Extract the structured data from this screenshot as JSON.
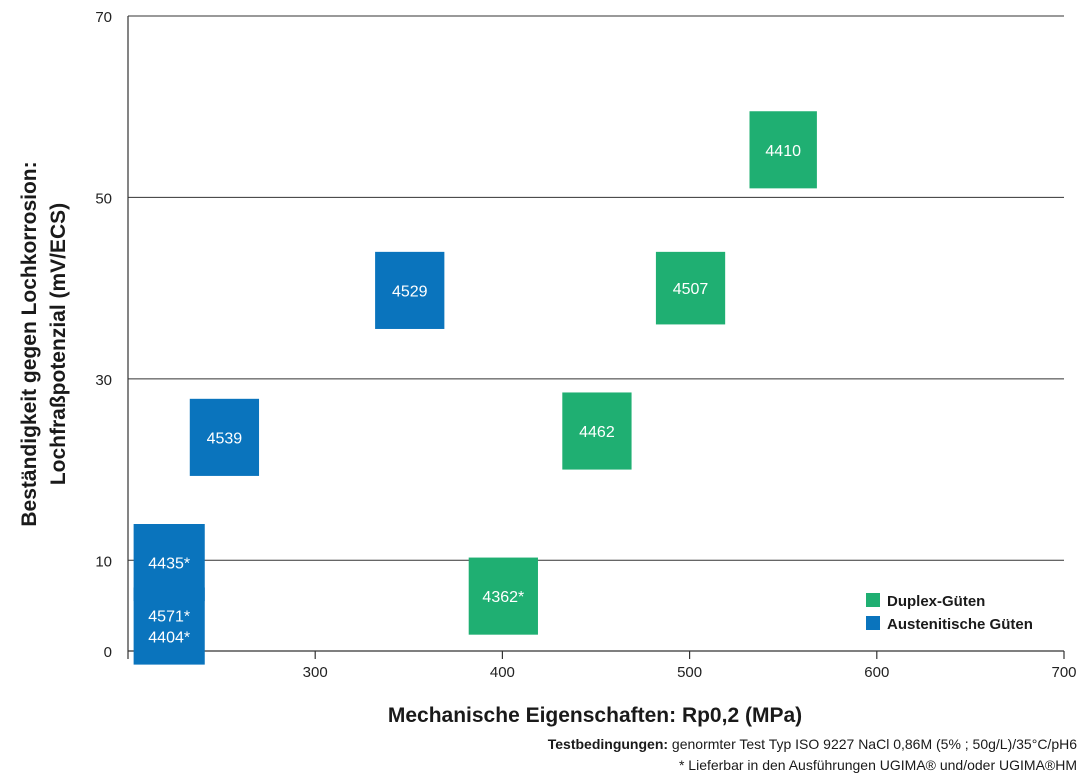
{
  "chart_data": {
    "type": "scatter",
    "xlabel": "Mechanische Eigenschaften: Rp0,2 (MPa)",
    "ylabel_lines": [
      "Beständigkeit gegen Lochkorrosion:",
      "Lochfraßpotenzial (mV/ECS)"
    ],
    "xlim": [
      200,
      700
    ],
    "ylim": [
      0,
      70
    ],
    "xticks": [
      300,
      400,
      500,
      600,
      700
    ],
    "yticks": [
      0,
      10,
      30,
      50,
      70
    ],
    "grid": "horizontal",
    "legend_position": "bottom-right",
    "series": [
      {
        "name": "Duplex-Güten",
        "color": "#1faf72",
        "points": [
          {
            "label": [
              "4410"
            ],
            "x": 550,
            "y": 55,
            "x_range": [
              532,
              568
            ],
            "y_range": [
              51,
              59.5
            ]
          },
          {
            "label": [
              "4507"
            ],
            "x": 500,
            "y": 40,
            "x_range": [
              482,
              519
            ],
            "y_range": [
              36,
              44
            ]
          },
          {
            "label": [
              "4462"
            ],
            "x": 450,
            "y": 24,
            "x_range": [
              432,
              469
            ],
            "y_range": [
              20,
              28.5
            ]
          },
          {
            "label": [
              "4362*"
            ],
            "x": 400,
            "y": 6,
            "x_range": [
              382,
              419
            ],
            "y_range": [
              1.8,
              10.3
            ]
          }
        ]
      },
      {
        "name": "Austenitische Güten",
        "color": "#0a74bd",
        "points": [
          {
            "label": [
              "4529"
            ],
            "x": 350,
            "y": 39,
            "x_range": [
              332,
              369
            ],
            "y_range": [
              35.5,
              44
            ]
          },
          {
            "label": [
              "4539"
            ],
            "x": 250,
            "y": 24,
            "x_range": [
              233,
              270
            ],
            "y_range": [
              19.3,
              27.8
            ]
          },
          {
            "label": [
              "4435*"
            ],
            "x": 220,
            "y": 10,
            "x_range": [
              203,
              241
            ],
            "y_range": [
              5.5,
              14
            ]
          },
          {
            "label": [
              "4571*",
              "4404*"
            ],
            "x": 220,
            "y": 1.5,
            "x_range": [
              203,
              241
            ],
            "y_range": [
              -1.5,
              7
            ]
          }
        ]
      }
    ]
  },
  "footnotes": {
    "test_label": "Testbedingungen:",
    "test_text": " genormter Test Typ ISO 9227 NaCl 0,86M (5% ; 50g/L)/35°C/pH6",
    "availability": "* Lieferbar in den Ausführungen UGIMA® und/oder UGIMA®HM"
  }
}
